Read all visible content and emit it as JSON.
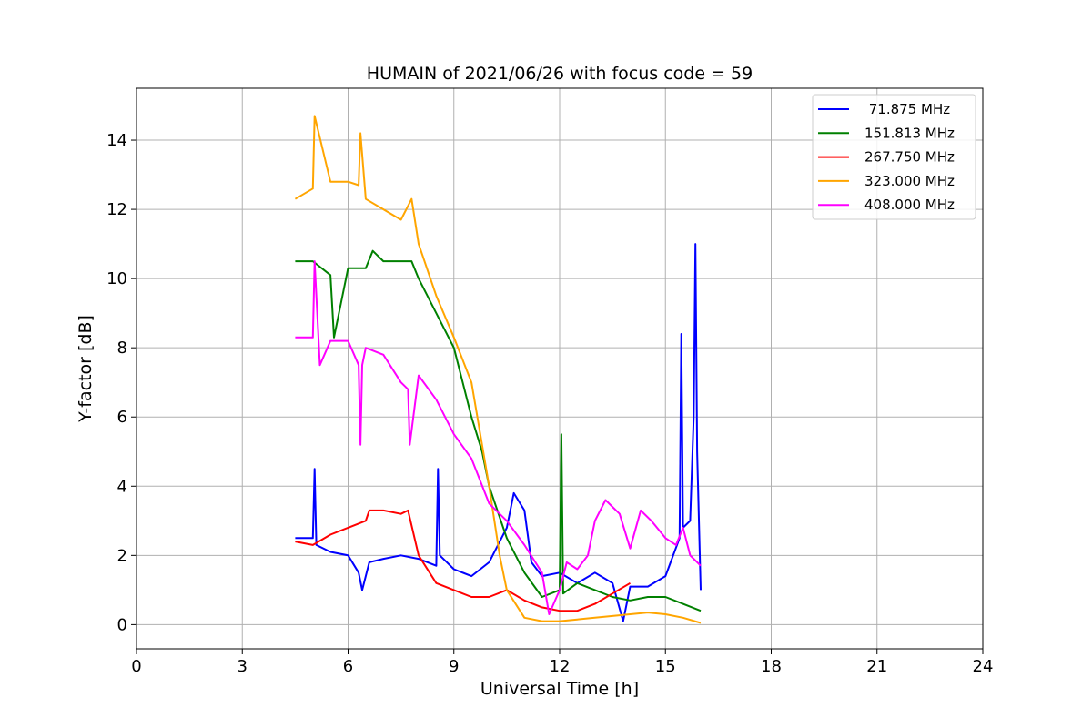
{
  "chart_data": {
    "type": "line",
    "title": "HUMAIN of 2021/06/26 with focus code = 59",
    "xlabel": "Universal Time [h]",
    "ylabel": "Y-factor [dB]",
    "xlim": [
      0,
      24
    ],
    "ylim": [
      -0.7,
      15.5
    ],
    "xticks": [
      0,
      3,
      6,
      9,
      12,
      15,
      18,
      21,
      24
    ],
    "yticks": [
      0,
      2,
      4,
      6,
      8,
      10,
      12,
      14
    ],
    "grid": true,
    "legend_position": "top-right",
    "series": [
      {
        "name": " 71.875 MHz",
        "color": "#0000ff",
        "x": [
          4.5,
          5.0,
          5.05,
          5.1,
          5.5,
          6.0,
          6.3,
          6.4,
          6.6,
          7.0,
          7.5,
          8.0,
          8.5,
          8.55,
          8.6,
          9.0,
          9.5,
          10.0,
          10.5,
          10.7,
          11.0,
          11.2,
          11.5,
          12.0,
          12.5,
          13.0,
          13.5,
          13.8,
          14.0,
          14.5,
          15.0,
          15.4,
          15.45,
          15.5,
          15.7,
          15.8,
          15.85,
          15.9,
          16.0
        ],
        "y": [
          2.5,
          2.5,
          4.5,
          2.3,
          2.1,
          2.0,
          1.5,
          1.0,
          1.8,
          1.9,
          2.0,
          1.9,
          1.7,
          4.5,
          2.0,
          1.6,
          1.4,
          1.8,
          2.8,
          3.8,
          3.3,
          1.8,
          1.4,
          1.5,
          1.2,
          1.5,
          1.2,
          0.1,
          1.1,
          1.1,
          1.4,
          2.5,
          8.4,
          2.8,
          3.0,
          6.0,
          11.0,
          5.0,
          1.0
        ]
      },
      {
        "name": "151.813 MHz",
        "color": "#008000",
        "x": [
          4.5,
          5.0,
          5.5,
          5.6,
          6.0,
          6.5,
          6.7,
          7.0,
          7.5,
          7.8,
          8.0,
          8.5,
          9.0,
          9.5,
          9.8,
          10.0,
          10.5,
          11.0,
          11.5,
          12.0,
          12.05,
          12.1,
          12.5,
          13.0,
          13.5,
          14.0,
          14.5,
          15.0,
          15.5,
          16.0
        ],
        "y": [
          10.5,
          10.5,
          10.1,
          8.3,
          10.3,
          10.3,
          10.8,
          10.5,
          10.5,
          10.5,
          10.0,
          9.0,
          8.0,
          6.0,
          5.0,
          4.0,
          2.5,
          1.5,
          0.8,
          1.0,
          5.5,
          0.9,
          1.2,
          1.0,
          0.8,
          0.7,
          0.8,
          0.8,
          0.6,
          0.4
        ]
      },
      {
        "name": "267.750 MHz",
        "color": "#ff0000",
        "x": [
          4.5,
          5.0,
          5.5,
          6.0,
          6.5,
          6.6,
          7.0,
          7.5,
          7.7,
          8.0,
          8.5,
          9.0,
          9.5,
          10.0,
          10.5,
          11.0,
          11.5,
          12.0,
          12.5,
          13.0,
          13.5,
          14.0
        ],
        "y": [
          2.4,
          2.3,
          2.6,
          2.8,
          3.0,
          3.3,
          3.3,
          3.2,
          3.3,
          2.0,
          1.2,
          1.0,
          0.8,
          0.8,
          1.0,
          0.7,
          0.5,
          0.4,
          0.4,
          0.6,
          0.9,
          1.2
        ]
      },
      {
        "name": "323.000 MHz",
        "color": "#ffa500",
        "x": [
          4.5,
          5.0,
          5.05,
          5.5,
          6.0,
          6.3,
          6.35,
          6.5,
          7.0,
          7.5,
          7.8,
          8.0,
          8.5,
          9.0,
          9.5,
          10.0,
          10.3,
          10.5,
          11.0,
          11.5,
          12.0,
          12.5,
          13.0,
          13.5,
          14.0,
          14.5,
          15.0,
          15.5,
          16.0
        ],
        "y": [
          12.3,
          12.6,
          14.7,
          12.8,
          12.8,
          12.7,
          14.2,
          12.3,
          12.0,
          11.7,
          12.3,
          11.0,
          9.5,
          8.3,
          7.0,
          4.0,
          2.0,
          1.0,
          0.2,
          0.1,
          0.1,
          0.15,
          0.2,
          0.25,
          0.3,
          0.35,
          0.3,
          0.2,
          0.05
        ]
      },
      {
        "name": "408.000 MHz",
        "color": "#ff00ff",
        "x": [
          4.5,
          5.0,
          5.05,
          5.2,
          5.5,
          6.0,
          6.3,
          6.35,
          6.4,
          6.5,
          7.0,
          7.5,
          7.7,
          7.75,
          8.0,
          8.5,
          9.0,
          9.5,
          10.0,
          10.5,
          11.0,
          11.5,
          11.7,
          12.0,
          12.2,
          12.5,
          12.8,
          13.0,
          13.3,
          13.7,
          14.0,
          14.3,
          14.6,
          15.0,
          15.3,
          15.5,
          15.7,
          16.0
        ],
        "y": [
          8.3,
          8.3,
          10.5,
          7.5,
          8.2,
          8.2,
          7.5,
          5.2,
          7.5,
          8.0,
          7.8,
          7.0,
          6.8,
          5.2,
          7.2,
          6.5,
          5.5,
          4.8,
          3.5,
          3.0,
          2.3,
          1.5,
          0.3,
          1.0,
          1.8,
          1.6,
          2.0,
          3.0,
          3.6,
          3.2,
          2.2,
          3.3,
          3.0,
          2.5,
          2.3,
          2.8,
          2.0,
          1.7
        ]
      }
    ]
  }
}
